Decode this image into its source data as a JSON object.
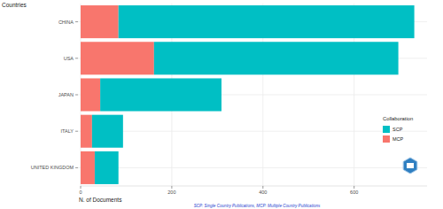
{
  "chart_data": {
    "type": "bar",
    "orientation": "horizontal",
    "stacked": true,
    "y_label": "Countries",
    "x_label": "N. of Documents",
    "legend_title": "Collaboration",
    "legend": "right",
    "annotations": [
      "SCP: Single Country Publications, MCP: Multiple Country Publications"
    ],
    "categories": [
      "CHINA",
      "USA",
      "JAPAN",
      "ITALY",
      "UNITED KINGDOM"
    ],
    "series": [
      {
        "name": "SCP",
        "color": "#00BFC4",
        "values": [
          649,
          536,
          266,
          68,
          52
        ]
      },
      {
        "name": "MCP",
        "color": "#F8766D",
        "values": [
          83,
          161,
          43,
          25,
          31
        ]
      }
    ],
    "xlim": [
      0,
      760
    ],
    "xticks": [
      0,
      200,
      400,
      600
    ],
    "grid": true
  }
}
